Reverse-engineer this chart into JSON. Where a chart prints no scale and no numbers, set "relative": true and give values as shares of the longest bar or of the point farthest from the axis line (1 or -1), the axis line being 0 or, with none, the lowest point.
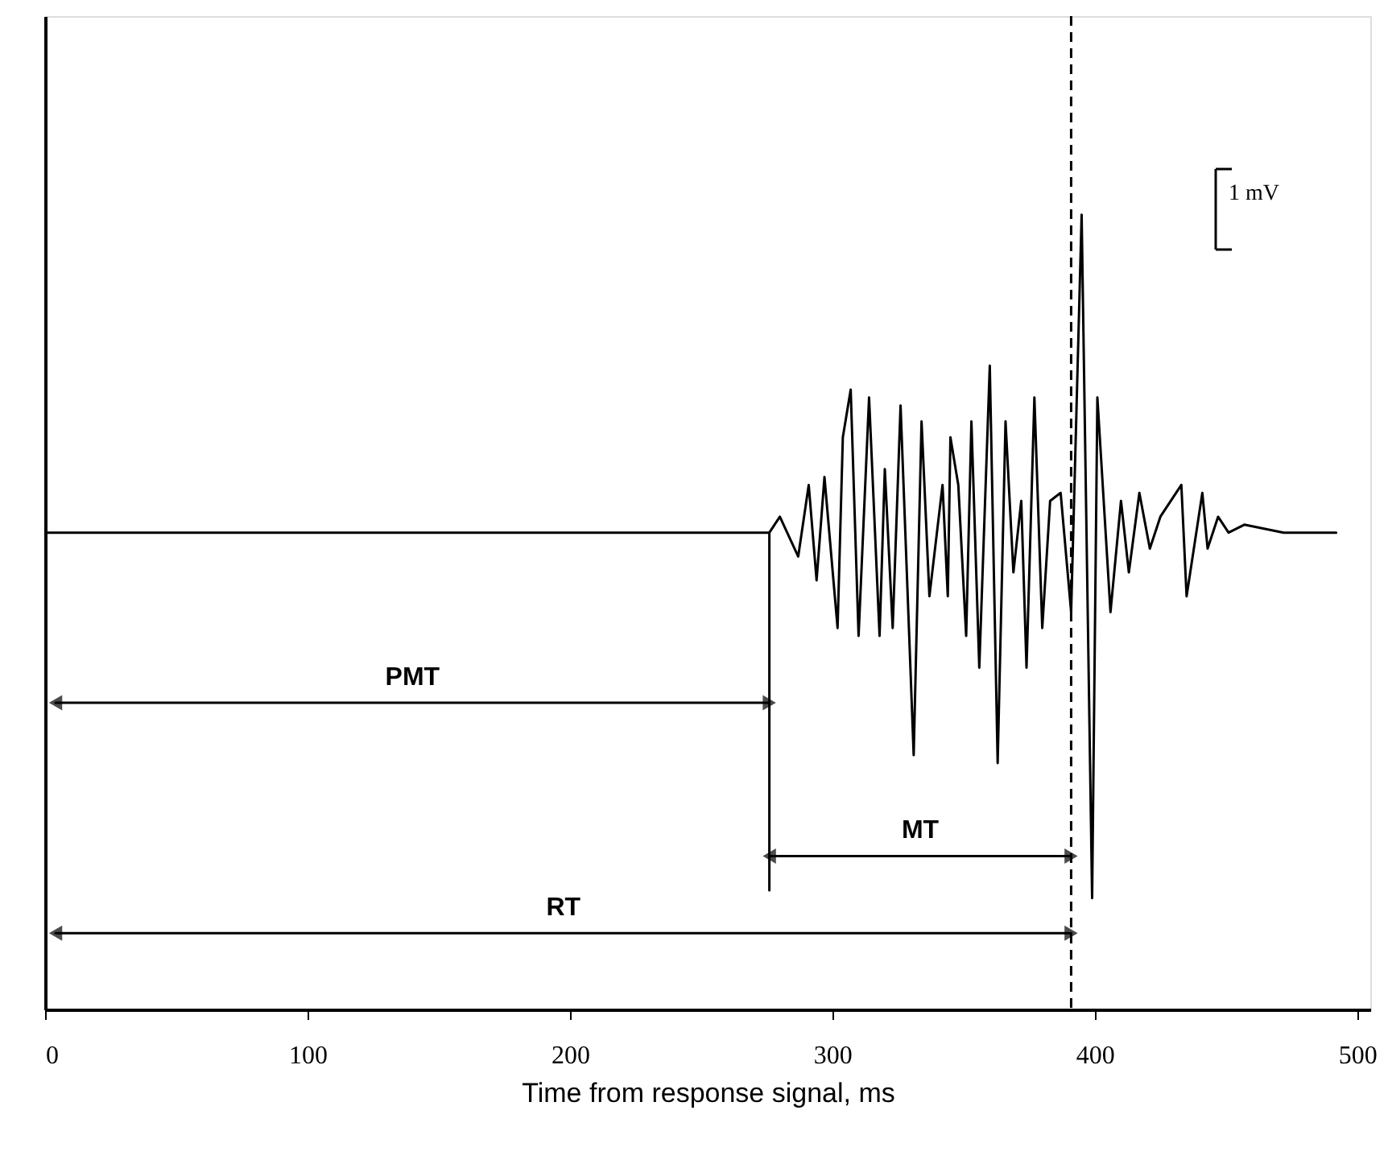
{
  "chart_data": {
    "type": "line",
    "relative": true,
    "xlabel": "Time from response signal, ms",
    "xlim": [
      0,
      505
    ],
    "xticks": [
      0,
      100,
      200,
      300,
      400,
      500
    ],
    "grid": false,
    "line_style": "solid",
    "series": [
      {
        "color": "#000000",
        "x": [
          0,
          276,
          280,
          287,
          291,
          294,
          297,
          302,
          304,
          307,
          310,
          314,
          318,
          320,
          323,
          326,
          331,
          334,
          337,
          342,
          344,
          345,
          348,
          351,
          353,
          356,
          360,
          363,
          366,
          369,
          372,
          374,
          377,
          380,
          383,
          387,
          391,
          395,
          399,
          401,
          406,
          410,
          413,
          417,
          421,
          425,
          433,
          435,
          441,
          443,
          447,
          451,
          457,
          472,
          492
        ],
        "values": [
          0.6,
          0.6,
          0.62,
          0.57,
          0.66,
          0.54,
          0.67,
          0.48,
          0.72,
          0.78,
          0.47,
          0.77,
          0.47,
          0.68,
          0.48,
          0.76,
          0.32,
          0.74,
          0.52,
          0.66,
          0.52,
          0.72,
          0.66,
          0.47,
          0.74,
          0.43,
          0.81,
          0.31,
          0.74,
          0.55,
          0.64,
          0.43,
          0.77,
          0.48,
          0.64,
          0.65,
          0.5,
          1.0,
          0.14,
          0.77,
          0.5,
          0.64,
          0.55,
          0.65,
          0.58,
          0.62,
          0.66,
          0.52,
          0.65,
          0.58,
          0.62,
          0.6,
          0.61,
          0.6,
          0.6
        ]
      },
      {
        "color": "#000000",
        "x": [
          276,
          276
        ],
        "values": [
          0.6,
          0.15
        ]
      },
      {
        "color": "#000000",
        "x": [
          4,
          276
        ],
        "values": [
          0.386,
          0.386
        ],
        "marker": "triangle"
      },
      {
        "color": "#000000",
        "x": [
          276,
          391
        ],
        "values": [
          0.193,
          0.193
        ],
        "marker": "triangle"
      },
      {
        "color": "#000000",
        "x": [
          4,
          391
        ],
        "values": [
          0.096,
          0.096
        ],
        "marker": "triangle"
      }
    ],
    "ref_lines": [
      {
        "axis": "x",
        "value": 391,
        "color": "#000000",
        "line_style": "dashed"
      }
    ],
    "annotations": [
      "PMT",
      "MT",
      "RT",
      "1 mV"
    ]
  }
}
